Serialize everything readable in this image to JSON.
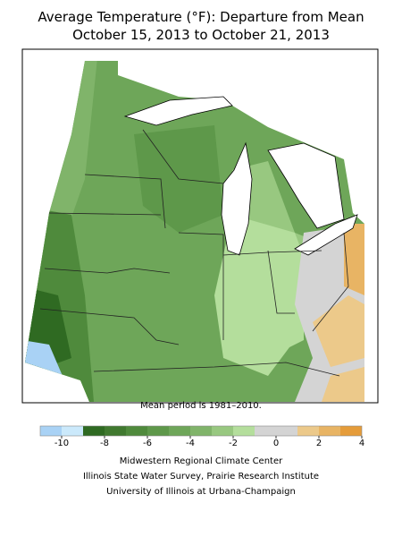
{
  "title": [
    "Average Temperature (°F): Departure from Mean",
    "October 15, 2013 to October 21, 2013"
  ],
  "note": "Mean period is 1981–2010.",
  "colorbar": {
    "bins": [
      -11,
      -10,
      -9,
      -8,
      -7,
      -6,
      -5,
      -4,
      -3,
      -2,
      -1,
      0,
      1,
      2,
      3,
      4
    ],
    "colors": [
      "#a9d2f5",
      "#cbe9fb",
      "#2f6a22",
      "#40792f",
      "#4f8a3c",
      "#5e984a",
      "#6ea659",
      "#80b46a",
      "#98c880",
      "#b4de9c",
      "#d4d4d4",
      "#d4d4d4",
      "#ecc98a",
      "#e8b464",
      "#e59c3a"
    ],
    "ticks": [
      -10,
      -8,
      -6,
      -4,
      -2,
      0,
      2,
      4
    ]
  },
  "credits": [
    "Midwestern Regional Climate Center",
    "Illinois State Water Survey, Prairie Research Institute",
    "University of Illinois at Urbana-Champaign"
  ]
}
